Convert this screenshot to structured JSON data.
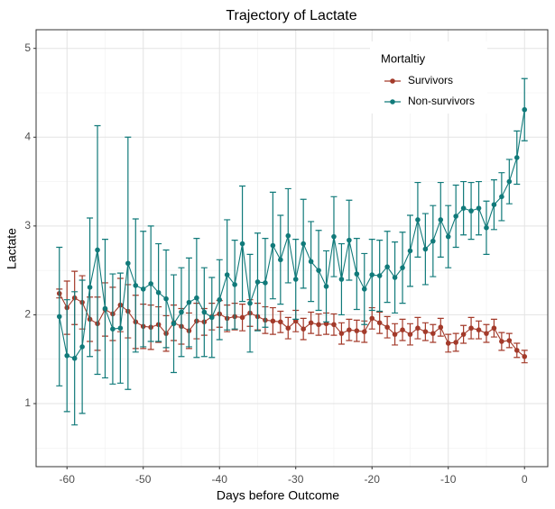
{
  "chart_data": {
    "type": "line",
    "title": "Trajectory of Lactate",
    "x_label": "Days before Outcome",
    "y_label": "Lactate",
    "legend_title": "Mortaltiy",
    "legend_position": "top-right",
    "grid": true,
    "x": [
      -61,
      -60,
      -59,
      -58,
      -57,
      -56,
      -55,
      -54,
      -53,
      -52,
      -51,
      -50,
      -49,
      -48,
      -47,
      -46,
      -45,
      -44,
      -43,
      -42,
      -41,
      -40,
      -39,
      -38,
      -37,
      -36,
      -35,
      -34,
      -33,
      -32,
      -31,
      -30,
      -29,
      -28,
      -27,
      -26,
      -25,
      -24,
      -23,
      -22,
      -21,
      -20,
      -19,
      -18,
      -17,
      -16,
      -15,
      -14,
      -13,
      -12,
      -11,
      -10,
      -9,
      -8,
      -7,
      -6,
      -5,
      -4,
      -3,
      -2,
      -1,
      0
    ],
    "xlim": [
      -64.05,
      3.05
    ],
    "xticks": [
      -60,
      -50,
      -40,
      -30,
      -20,
      -10,
      0
    ],
    "ylim": [
      0.29,
      5.21
    ],
    "yticks": [
      1,
      2,
      3,
      4,
      5
    ],
    "series": [
      {
        "name": "Survivors",
        "color": "#a33a2a",
        "values": [
          2.24,
          2.08,
          2.19,
          2.14,
          1.95,
          1.9,
          2.06,
          2.01,
          2.11,
          2.04,
          1.92,
          1.87,
          1.86,
          1.89,
          1.79,
          1.91,
          1.87,
          1.82,
          1.93,
          1.92,
          1.98,
          2.01,
          1.96,
          1.98,
          1.97,
          2.02,
          1.98,
          1.94,
          1.93,
          1.92,
          1.85,
          1.93,
          1.84,
          1.91,
          1.89,
          1.9,
          1.89,
          1.79,
          1.83,
          1.82,
          1.81,
          1.96,
          1.91,
          1.86,
          1.78,
          1.83,
          1.78,
          1.85,
          1.81,
          1.79,
          1.86,
          1.68,
          1.69,
          1.78,
          1.85,
          1.83,
          1.79,
          1.85,
          1.7,
          1.71,
          1.6,
          1.53
        ],
        "errors": [
          0.05,
          0.3,
          0.3,
          0.3,
          0.25,
          0.3,
          0.3,
          0.3,
          0.3,
          0.3,
          0.3,
          0.25,
          0.25,
          0.2,
          0.2,
          0.2,
          0.2,
          0.2,
          0.2,
          0.15,
          0.15,
          0.15,
          0.15,
          0.15,
          0.15,
          0.15,
          0.15,
          0.15,
          0.15,
          0.12,
          0.12,
          0.12,
          0.12,
          0.12,
          0.12,
          0.12,
          0.12,
          0.12,
          0.12,
          0.12,
          0.12,
          0.12,
          0.12,
          0.12,
          0.12,
          0.12,
          0.12,
          0.12,
          0.1,
          0.1,
          0.1,
          0.1,
          0.1,
          0.1,
          0.12,
          0.1,
          0.1,
          0.1,
          0.1,
          0.08,
          0.08,
          0.07
        ]
      },
      {
        "name": "Non-survivors",
        "color": "#117a7a",
        "values": [
          1.98,
          1.54,
          1.51,
          1.64,
          2.31,
          2.73,
          2.07,
          1.84,
          1.85,
          2.58,
          2.33,
          2.29,
          2.35,
          2.25,
          2.18,
          1.9,
          2.03,
          2.14,
          2.19,
          2.03,
          1.97,
          2.17,
          2.45,
          2.34,
          2.8,
          2.13,
          2.37,
          2.36,
          2.78,
          2.62,
          2.89,
          2.4,
          2.8,
          2.6,
          2.5,
          2.32,
          2.88,
          2.4,
          2.84,
          2.46,
          2.29,
          2.45,
          2.44,
          2.54,
          2.42,
          2.53,
          2.72,
          3.07,
          2.74,
          2.83,
          3.07,
          2.88,
          3.11,
          3.2,
          3.17,
          3.2,
          2.98,
          3.24,
          3.33,
          3.5,
          3.77,
          4.31
        ],
        "errors": [
          0.78,
          0.63,
          0.75,
          0.75,
          0.78,
          1.4,
          0.78,
          0.62,
          0.62,
          1.42,
          0.75,
          0.65,
          0.65,
          0.55,
          0.55,
          0.55,
          0.5,
          0.5,
          0.67,
          0.5,
          0.45,
          0.45,
          0.62,
          0.5,
          0.65,
          0.55,
          0.55,
          0.5,
          0.6,
          0.5,
          0.53,
          0.45,
          0.5,
          0.45,
          0.45,
          0.4,
          0.45,
          0.4,
          0.45,
          0.4,
          0.4,
          0.4,
          0.4,
          0.4,
          0.4,
          0.4,
          0.4,
          0.42,
          0.4,
          0.4,
          0.42,
          0.35,
          0.35,
          0.3,
          0.32,
          0.3,
          0.3,
          0.28,
          0.27,
          0.25,
          0.3,
          0.35
        ]
      }
    ]
  }
}
